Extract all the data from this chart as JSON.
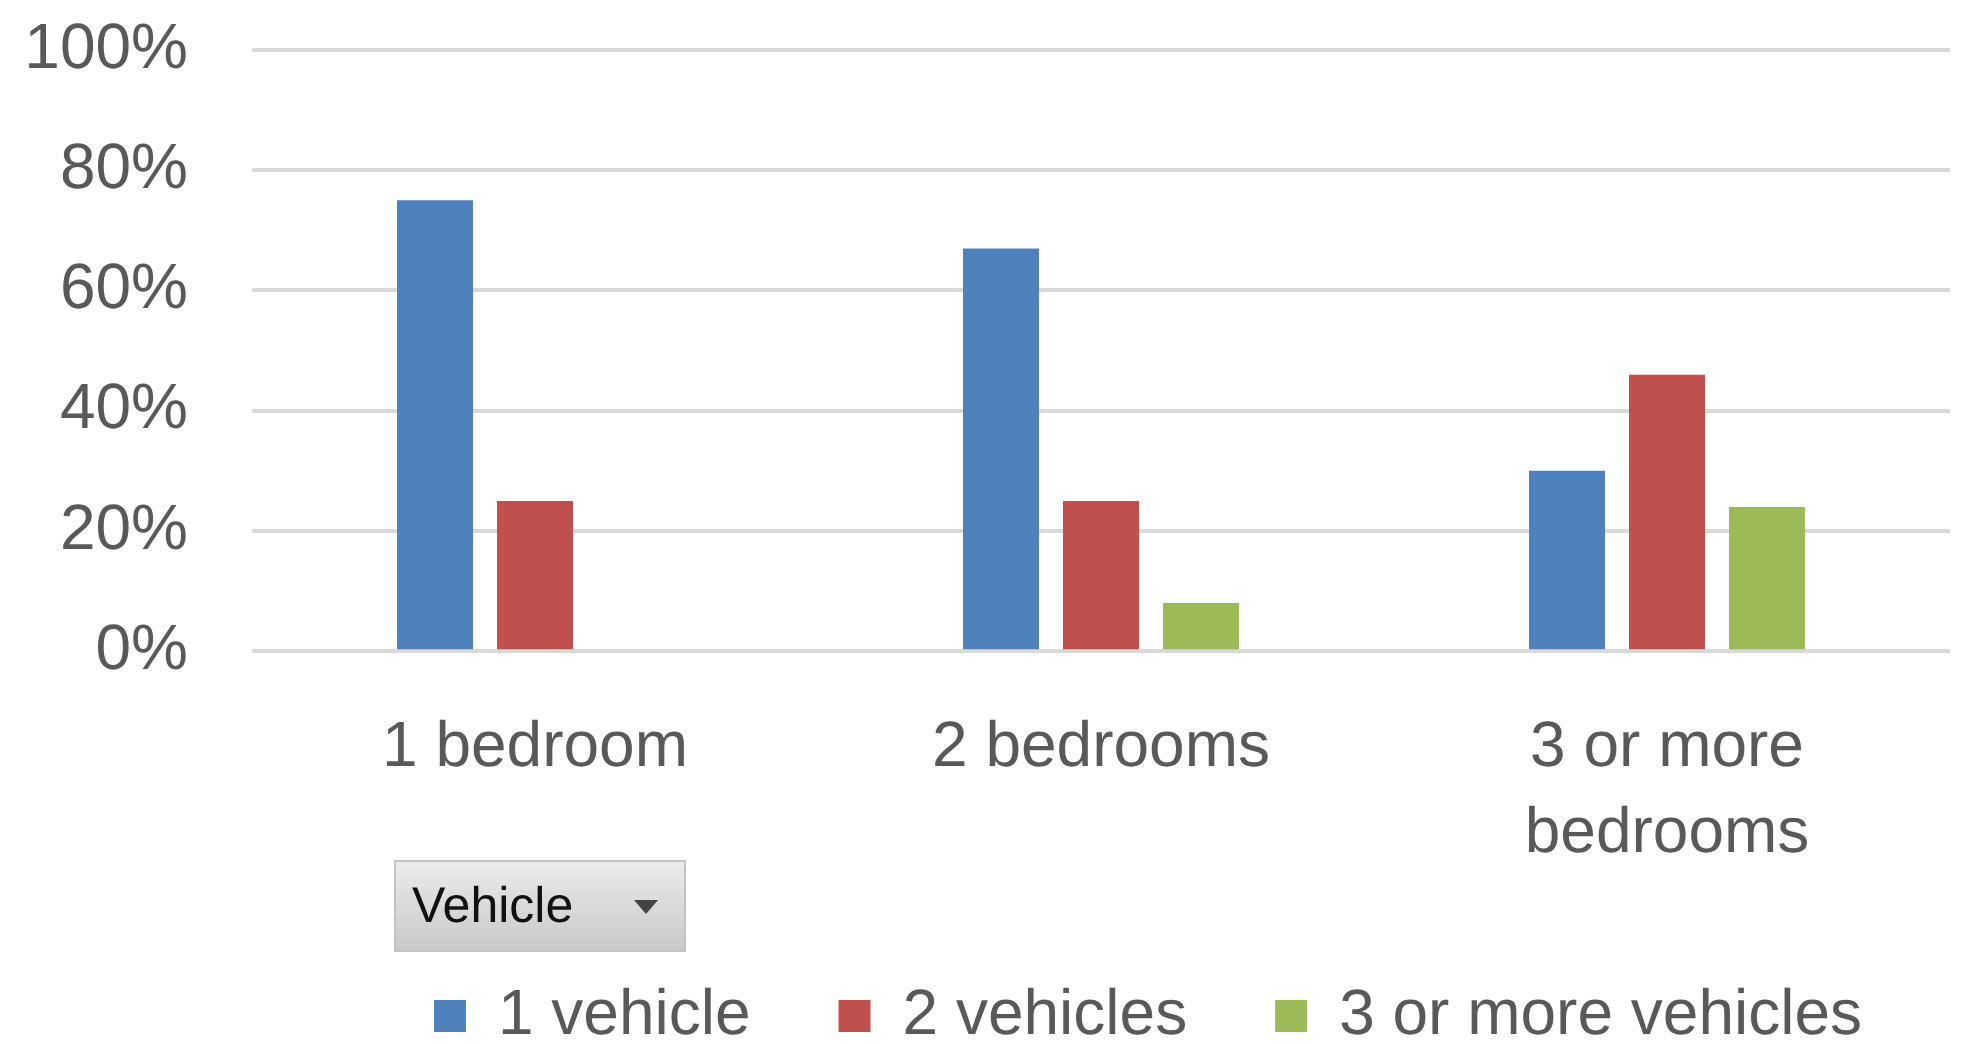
{
  "chart_data": {
    "type": "bar",
    "categories": [
      "1 bedroom",
      "2 bedrooms",
      "3 or more bedrooms"
    ],
    "series": [
      {
        "name": "1 vehicle",
        "color": "#4f81bd",
        "values": [
          75,
          67,
          30
        ]
      },
      {
        "name": "2 vehicles",
        "color": "#c0504d",
        "values": [
          25,
          25,
          46
        ]
      },
      {
        "name": "3 or more vehicles",
        "color": "#9bbb59",
        "values": [
          null,
          8,
          24
        ]
      }
    ],
    "ylim": [
      0,
      100
    ],
    "yticks": [
      {
        "value": 0,
        "label": "0%"
      },
      {
        "value": 20,
        "label": "20%"
      },
      {
        "value": 40,
        "label": "40%"
      },
      {
        "value": 60,
        "label": "60%"
      },
      {
        "value": 80,
        "label": "80%"
      },
      {
        "value": 100,
        "label": "100%"
      }
    ],
    "grid": "y",
    "legend": "bottom right",
    "legend_title": "Vehicle"
  }
}
